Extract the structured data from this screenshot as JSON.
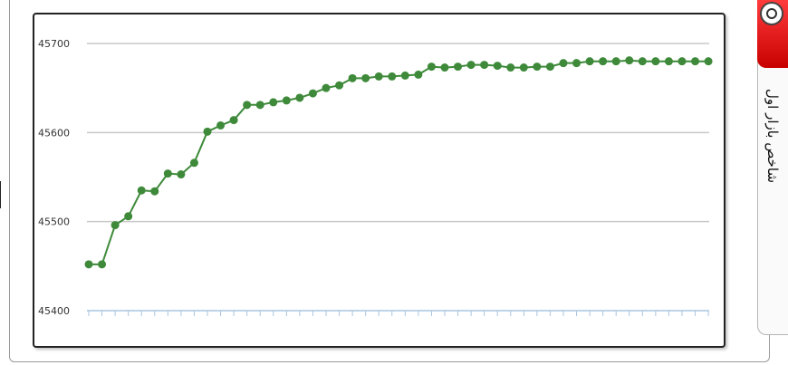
{
  "side_tab": {
    "label": "شاخص بازار اول",
    "icon": "magnifier-icon"
  },
  "colors": {
    "line": "#3e8a3a",
    "marker": "#3e8a3a",
    "grid": "#c8c8c8",
    "tick": "#a9c5e0"
  },
  "chart_data": {
    "type": "line",
    "title": "",
    "xlabel": "",
    "ylabel": "",
    "ylim": [
      45400,
      45700
    ],
    "yticks": [
      45400,
      45500,
      45600,
      45700
    ],
    "grid": true,
    "legend": "none",
    "x": [
      1,
      2,
      3,
      4,
      5,
      6,
      7,
      8,
      9,
      10,
      11,
      12,
      13,
      14,
      15,
      16,
      17,
      18,
      19,
      20,
      21,
      22,
      23,
      24,
      25,
      26,
      27,
      28,
      29,
      30,
      31,
      32,
      33,
      34,
      35,
      36,
      37,
      38,
      39,
      40,
      41,
      42,
      43,
      44,
      45,
      46,
      47,
      48
    ],
    "series": [
      {
        "name": "",
        "values": [
          45452,
          45452,
          45496,
          45506,
          45535,
          45534,
          45554,
          45553,
          45566,
          45601,
          45608,
          45614,
          45631,
          45631,
          45634,
          45636,
          45639,
          45644,
          45650,
          45653,
          45661,
          45661,
          45663,
          45663,
          45664,
          45665,
          45674,
          45673,
          45674,
          45676,
          45676,
          45675,
          45673,
          45673,
          45674,
          45674,
          45678,
          45678,
          45680,
          45680,
          45680,
          45681,
          45680,
          45680,
          45680,
          45680,
          45680,
          45680
        ]
      }
    ]
  }
}
